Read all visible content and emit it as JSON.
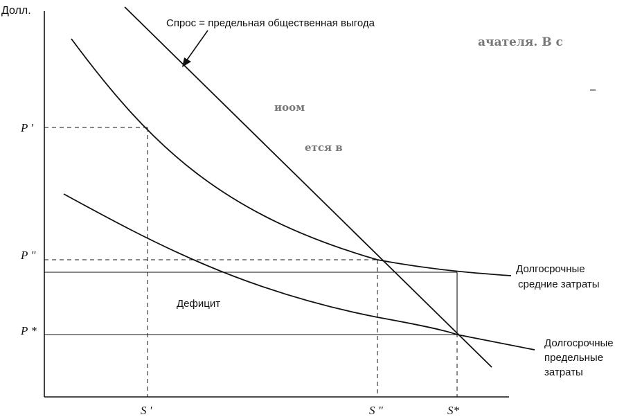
{
  "chart_data": {
    "type": "line",
    "ylabel": "Долл.",
    "y_ticks": [
      "P '",
      "P \"",
      "P *"
    ],
    "x_ticks": [
      "S '",
      "S \"",
      "S*"
    ],
    "demand_label": "Спрос = предельная общественная выгода",
    "deficit_label": "Дефицит",
    "series": [
      {
        "name": "Спрос = предельная общественная выгода"
      },
      {
        "name": "Долгосрочные средние затраты",
        "label_lines": [
          "Долгосрочные",
          "средние затраты"
        ]
      },
      {
        "name": "Долгосрочные предельные затраты",
        "label_lines": [
          "Долгосрочные",
          "предельные",
          "затраты"
        ]
      }
    ],
    "faded_text": [
      "ачателя. В с",
      "иоом",
      "ется в"
    ]
  }
}
